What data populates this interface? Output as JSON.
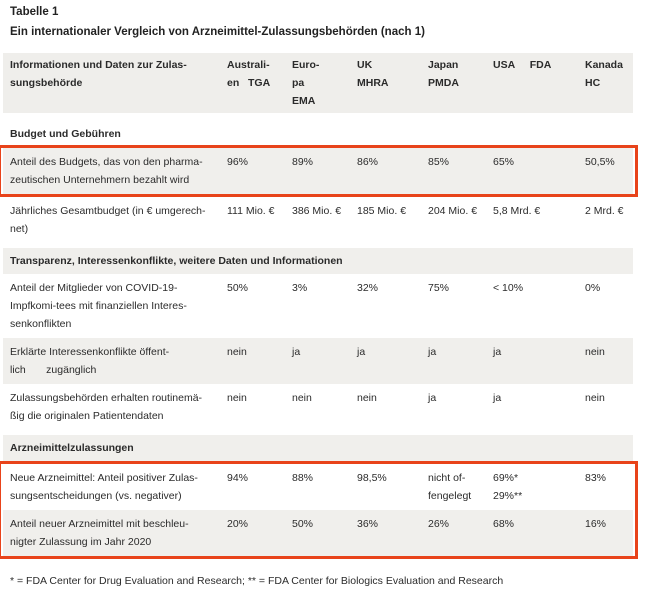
{
  "title": "Tabelle 1",
  "subtitle": "Ein internationaler Vergleich von Arzneimittel-Zulassungsbehörden (nach 1)",
  "colors": {
    "highlight_border": "#e8431a",
    "row_shade": "#f0efec",
    "header_shade": "#efeeeb",
    "text": "#2b2b2b"
  },
  "table": {
    "header": {
      "label": "Informationen und Daten zur Zulas-\nsungsbehörde",
      "columns": [
        "Australi-\nen   TGA",
        "Euro-\npa\nEMA",
        "UK\nMHRA",
        "Japan\nPMDA",
        "USA     FDA",
        "Kanada\nHC"
      ]
    },
    "rows": [
      {
        "kind": "section",
        "shaded": false,
        "label": "Budget und Gebühren"
      },
      {
        "kind": "data",
        "shaded": true,
        "highlight_group": "box1",
        "label": "Anteil des Budgets, das von den pharma-\nzeutischen Unternehmern bezahlt wird",
        "cells": [
          "96%",
          "89%",
          "86%",
          "85%",
          "65%",
          "50,5%"
        ]
      },
      {
        "kind": "data",
        "shaded": false,
        "label": "Jährliches Gesamtbudget (in € umgerech-\nnet)",
        "cells": [
          "111 Mio. €",
          "386 Mio. €",
          "185 Mio. €",
          "204 Mio. €",
          "5,8 Mrd. €",
          "2 Mrd. €"
        ]
      },
      {
        "kind": "section",
        "shaded": true,
        "label": "Transparenz, Interessenkonflikte, weitere Daten und Informationen"
      },
      {
        "kind": "data",
        "shaded": false,
        "label": "Anteil der Mitglieder von COVID-19-\nImpfkomi-tees mit finanziellen Interes-\nsenkonflikten",
        "cells": [
          "50%",
          "3%",
          "32%",
          "75%",
          "< 10%",
          "0%"
        ]
      },
      {
        "kind": "data",
        "shaded": true,
        "label": "Erklärte Interessenkonflikte öffent-\nlich       zugänglich",
        "cells": [
          "nein",
          "ja",
          "ja",
          "ja",
          "ja",
          "nein"
        ]
      },
      {
        "kind": "data",
        "shaded": false,
        "label": "Zulassungsbehörden erhalten routinemä-\nßig die originalen Patientendaten",
        "cells": [
          "nein",
          "nein",
          "nein",
          "ja",
          "ja",
          "nein"
        ]
      },
      {
        "kind": "section",
        "shaded": true,
        "label": "Arzneimittelzulassungen"
      },
      {
        "kind": "data",
        "shaded": false,
        "highlight_group": "box2",
        "label": "Neue Arzneimittel: Anteil positiver Zulas-\nsungsentscheidungen (vs. negativer)",
        "cells": [
          "94%",
          "88%",
          "98,5%",
          "nicht of-\nfengelegt",
          "69%*\n29%**",
          "83%"
        ]
      },
      {
        "kind": "data",
        "shaded": true,
        "highlight_group": "box2",
        "label": "Anteil neuer Arzneimittel mit beschleu-\nnigter Zulassung im Jahr 2020",
        "cells": [
          "20%",
          "50%",
          "36%",
          "26%",
          "68%",
          "16%"
        ]
      }
    ]
  },
  "footnote": "* = FDA Center for Drug Evaluation and Research; ** = FDA Center for Biologics Evaluation and Research"
}
